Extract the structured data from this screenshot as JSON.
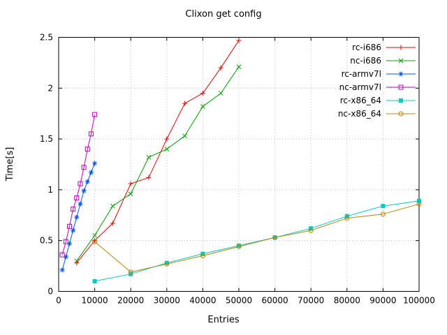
{
  "window": {
    "title": "Clixon get config"
  },
  "colors": {
    "background": "#ffffff",
    "border": "#000000",
    "grid": "#b4b4b4",
    "text": "#000000"
  },
  "chart_data": {
    "type": "line",
    "title": "Clixon get config",
    "xlabel": "Entries",
    "ylabel": "Time[s]",
    "xlim": [
      0,
      100000
    ],
    "ylim": [
      0,
      2.5
    ],
    "grid": true,
    "legend_position": "top-right-inside",
    "x_ticks": [
      0,
      10000,
      20000,
      30000,
      40000,
      50000,
      60000,
      70000,
      80000,
      90000,
      100000
    ],
    "x_tick_labels": [
      "0",
      "10000",
      "20000",
      "30000",
      "40000",
      "50000",
      "60000",
      "70000",
      "80000",
      "90000",
      "100000"
    ],
    "y_ticks": [
      0,
      0.5,
      1,
      1.5,
      2,
      2.5
    ],
    "y_tick_labels": [
      "0",
      "0.5",
      "1",
      "1.5",
      "2",
      "2.5"
    ],
    "series": [
      {
        "name": "rc-i686",
        "color": "#ee0000",
        "marker": "plus",
        "points": [
          [
            5000,
            0.28
          ],
          [
            10000,
            0.5
          ],
          [
            15000,
            0.67
          ],
          [
            20000,
            1.06
          ],
          [
            25000,
            1.12
          ],
          [
            30000,
            1.5
          ],
          [
            35000,
            1.85
          ],
          [
            40000,
            1.95
          ],
          [
            45000,
            2.2
          ],
          [
            50000,
            2.47
          ]
        ]
      },
      {
        "name": "nc-i686",
        "color": "#00a000",
        "marker": "cross",
        "points": [
          [
            5000,
            0.3
          ],
          [
            10000,
            0.55
          ],
          [
            15000,
            0.84
          ],
          [
            20000,
            0.96
          ],
          [
            25000,
            1.32
          ],
          [
            30000,
            1.4
          ],
          [
            35000,
            1.53
          ],
          [
            40000,
            1.82
          ],
          [
            45000,
            1.95
          ],
          [
            50000,
            2.21
          ]
        ]
      },
      {
        "name": "rc-armv7l",
        "color": "#0055ee",
        "marker": "asterisk",
        "points": [
          [
            1000,
            0.21
          ],
          [
            2000,
            0.34
          ],
          [
            3000,
            0.47
          ],
          [
            4000,
            0.6
          ],
          [
            5000,
            0.73
          ],
          [
            6000,
            0.86
          ],
          [
            7000,
            0.99
          ],
          [
            8000,
            1.08
          ],
          [
            9000,
            1.17
          ],
          [
            10000,
            1.26
          ]
        ]
      },
      {
        "name": "nc-armv7l",
        "color": "#c000c0",
        "marker": "open-square",
        "points": [
          [
            1000,
            0.36
          ],
          [
            2000,
            0.49
          ],
          [
            3000,
            0.64
          ],
          [
            4000,
            0.81
          ],
          [
            5000,
            0.92
          ],
          [
            6000,
            1.06
          ],
          [
            7000,
            1.22
          ],
          [
            8000,
            1.4
          ],
          [
            9000,
            1.55
          ],
          [
            10000,
            1.74
          ]
        ]
      },
      {
        "name": "rc-x86_64",
        "color": "#00c8c8",
        "marker": "filled-square",
        "points": [
          [
            10000,
            0.1
          ],
          [
            20000,
            0.17
          ],
          [
            30000,
            0.28
          ],
          [
            40000,
            0.37
          ],
          [
            50000,
            0.45
          ],
          [
            60000,
            0.53
          ],
          [
            70000,
            0.62
          ],
          [
            80000,
            0.74
          ],
          [
            90000,
            0.84
          ],
          [
            100000,
            0.89
          ]
        ]
      },
      {
        "name": "nc-x86_64",
        "color": "#b8860b",
        "marker": "open-circle",
        "points": [
          [
            10000,
            0.49
          ],
          [
            20000,
            0.19
          ],
          [
            30000,
            0.27
          ],
          [
            40000,
            0.35
          ],
          [
            50000,
            0.44
          ],
          [
            60000,
            0.53
          ],
          [
            70000,
            0.6
          ],
          [
            80000,
            0.72
          ],
          [
            90000,
            0.76
          ],
          [
            100000,
            0.86
          ]
        ]
      }
    ]
  }
}
